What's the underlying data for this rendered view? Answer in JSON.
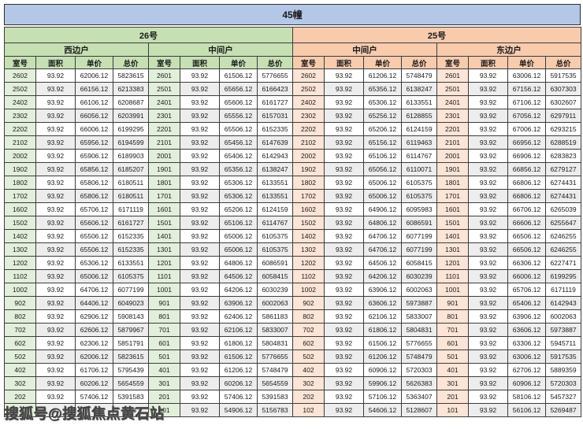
{
  "title": "45幢",
  "watermark": {
    "text": "搜狐号@搜狐焦点黄石站"
  },
  "colors": {
    "title_bg": "#b4c7e7",
    "building_26_header_bg": "#c6e0b4",
    "building_26_room_cell_bg": "#e2efda",
    "building_25_header_bg": "#f8cbad",
    "building_25_room_cell_bg": "#fce4d6",
    "row_stripe": "#ededed",
    "grid_border": "#3c3c3c"
  },
  "buildings": [
    {
      "label": "26号"
    },
    {
      "label": "25号"
    }
  ],
  "unit_groups": [
    {
      "building": "26号",
      "label": "西边户"
    },
    {
      "building": "26号",
      "label": "中间户"
    },
    {
      "building": "25号",
      "label": "中间户"
    },
    {
      "building": "25号",
      "label": "东边户"
    }
  ],
  "column_headers": [
    "室号",
    "面积",
    "单价",
    "总价"
  ],
  "table": {
    "note_obscured": "bottom-left row partially hidden by watermark; only '743' visible in its 总价 cell",
    "rows": [
      [
        "2602",
        "93.92",
        "62006.12",
        "5823615",
        "2601",
        "93.92",
        "61506.12",
        "5776655",
        "2602",
        "93.92",
        "61206.12",
        "5748479",
        "2601",
        "93.92",
        "63006.12",
        "5917535"
      ],
      [
        "2502",
        "93.92",
        "66156.12",
        "6213383",
        "2501",
        "93.92",
        "65656.12",
        "6166423",
        "2502",
        "93.92",
        "65356.12",
        "6138247",
        "2501",
        "93.92",
        "67156.12",
        "6307303"
      ],
      [
        "2402",
        "93.92",
        "66106.12",
        "6208687",
        "2401",
        "93.92",
        "65606.12",
        "6161727",
        "2402",
        "93.92",
        "65306.12",
        "6133551",
        "2401",
        "93.92",
        "67106.12",
        "6302607"
      ],
      [
        "2302",
        "93.92",
        "66056.12",
        "6203991",
        "2301",
        "93.92",
        "65556.12",
        "6157031",
        "2302",
        "93.92",
        "65256.12",
        "6128855",
        "2301",
        "93.92",
        "67056.12",
        "6297911"
      ],
      [
        "2202",
        "93.92",
        "66006.12",
        "6199295",
        "2201",
        "93.92",
        "65506.12",
        "6152335",
        "2202",
        "93.92",
        "65206.12",
        "6124159",
        "2201",
        "93.92",
        "67006.12",
        "6293215"
      ],
      [
        "2102",
        "93.92",
        "65956.12",
        "6194599",
        "2101",
        "93.92",
        "65456.12",
        "6147639",
        "2102",
        "93.92",
        "65156.12",
        "6119463",
        "2101",
        "93.92",
        "66956.12",
        "6288519"
      ],
      [
        "2002",
        "93.92",
        "65906.12",
        "6189903",
        "2001",
        "93.92",
        "65406.12",
        "6142943",
        "2002",
        "93.92",
        "65106.12",
        "6114767",
        "2001",
        "93.92",
        "66906.12",
        "6283823"
      ],
      [
        "1902",
        "93.92",
        "65856.12",
        "6185207",
        "1901",
        "93.92",
        "65356.12",
        "6138247",
        "1902",
        "93.92",
        "65056.12",
        "6110071",
        "1901",
        "93.92",
        "66856.12",
        "6279127"
      ],
      [
        "1802",
        "93.92",
        "65806.12",
        "6180511",
        "1801",
        "93.92",
        "65306.12",
        "6133551",
        "1802",
        "93.92",
        "65006.12",
        "6105375",
        "1801",
        "93.92",
        "66806.12",
        "6274431"
      ],
      [
        "1702",
        "93.92",
        "65806.12",
        "6180511",
        "1701",
        "93.92",
        "65306.12",
        "6133551",
        "1702",
        "93.92",
        "65006.12",
        "6105375",
        "1701",
        "93.92",
        "66806.12",
        "6274431"
      ],
      [
        "1602",
        "93.92",
        "65706.12",
        "6171119",
        "1601",
        "93.92",
        "65206.12",
        "6124159",
        "1602",
        "93.92",
        "64906.12",
        "6095983",
        "1601",
        "93.92",
        "66706.12",
        "6265039"
      ],
      [
        "1502",
        "93.92",
        "65606.12",
        "6161727",
        "1501",
        "93.92",
        "65106.12",
        "6114767",
        "1502",
        "93.92",
        "64806.12",
        "6086591",
        "1501",
        "93.92",
        "66606.12",
        "6255647"
      ],
      [
        "1402",
        "93.92",
        "65506.12",
        "6152335",
        "1401",
        "93.92",
        "65006.12",
        "6105375",
        "1402",
        "93.92",
        "64706.12",
        "6077199",
        "1401",
        "93.92",
        "66506.12",
        "6246255"
      ],
      [
        "1302",
        "93.92",
        "65506.12",
        "6152335",
        "1301",
        "93.92",
        "65006.12",
        "6105375",
        "1302",
        "93.92",
        "64706.12",
        "6077199",
        "1301",
        "93.92",
        "66506.12",
        "6246255"
      ],
      [
        "1202",
        "93.92",
        "65306.12",
        "6133551",
        "1201",
        "93.92",
        "64806.12",
        "6086591",
        "1202",
        "93.92",
        "64506.12",
        "6058415",
        "1201",
        "93.92",
        "66306.12",
        "6227471"
      ],
      [
        "1102",
        "93.92",
        "65006.12",
        "6105375",
        "1101",
        "93.92",
        "64506.12",
        "6058415",
        "1102",
        "93.92",
        "64206.12",
        "6030239",
        "1101",
        "93.92",
        "66006.12",
        "6199295"
      ],
      [
        "1002",
        "93.92",
        "64706.12",
        "6077199",
        "1001",
        "93.92",
        "64206.12",
        "6030239",
        "1002",
        "93.92",
        "63906.12",
        "6002063",
        "1001",
        "93.92",
        "65706.12",
        "6171119"
      ],
      [
        "902",
        "93.92",
        "64406.12",
        "6049023",
        "901",
        "93.92",
        "63906.12",
        "6002063",
        "902",
        "93.92",
        "63606.12",
        "5973887",
        "901",
        "93.92",
        "65406.12",
        "6142943"
      ],
      [
        "802",
        "93.92",
        "62906.12",
        "5908143",
        "801",
        "93.92",
        "62406.12",
        "5861183",
        "802",
        "93.92",
        "62106.12",
        "5833007",
        "801",
        "93.92",
        "63906.12",
        "6002063"
      ],
      [
        "702",
        "93.92",
        "62606.12",
        "5879967",
        "701",
        "93.92",
        "62106.12",
        "5833007",
        "702",
        "93.92",
        "61806.12",
        "5804831",
        "701",
        "93.92",
        "63606.12",
        "5973887"
      ],
      [
        "602",
        "93.92",
        "62306.12",
        "5851791",
        "601",
        "93.92",
        "61806.12",
        "5804831",
        "602",
        "93.92",
        "61506.12",
        "5776655",
        "601",
        "93.92",
        "63306.12",
        "5945711"
      ],
      [
        "502",
        "93.92",
        "62006.12",
        "5823615",
        "501",
        "93.92",
        "61506.12",
        "5776655",
        "502",
        "93.92",
        "61206.12",
        "5748479",
        "501",
        "93.92",
        "63006.12",
        "5917535"
      ],
      [
        "402",
        "93.92",
        "61706.12",
        "5795439",
        "401",
        "93.92",
        "61206.12",
        "5748479",
        "402",
        "93.92",
        "60906.12",
        "5720303",
        "401",
        "93.92",
        "62706.12",
        "5889359"
      ],
      [
        "302",
        "93.92",
        "60206.12",
        "5654559",
        "301",
        "93.92",
        "60206.12",
        "5654559",
        "302",
        "93.92",
        "59906.12",
        "5626383",
        "301",
        "93.92",
        "60906.12",
        "5720303"
      ],
      [
        "202",
        "93.92",
        "57406.12",
        "5391583",
        "201",
        "93.92",
        "57406.12",
        "5391583",
        "202",
        "93.92",
        "57106.12",
        "5363407",
        "201",
        "93.92",
        "58106.12",
        "5457327"
      ],
      [
        "",
        "",
        "",
        "743",
        "101",
        "93.92",
        "54906.12",
        "5156783",
        "102",
        "93.92",
        "54606.12",
        "5128607",
        "101",
        "93.92",
        "56106.12",
        "5269487"
      ]
    ]
  }
}
